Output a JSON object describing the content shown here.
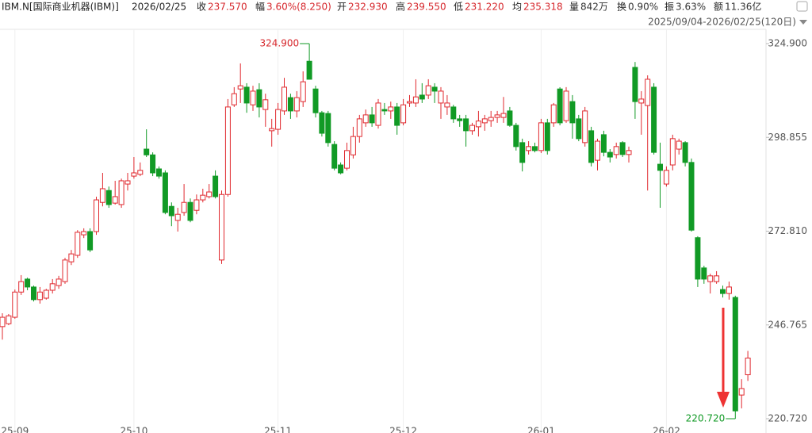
{
  "header": {
    "symbol": "IBM.N[国际商业机器(IBM)]",
    "date": "2026/02/25",
    "fields": [
      {
        "label": "收",
        "value": "237.570",
        "color": "#d6262b"
      },
      {
        "label": "幅",
        "value": "3.60%(8.250)",
        "color": "#d6262b"
      },
      {
        "label": "开",
        "value": "232.930",
        "color": "#d6262b"
      },
      {
        "label": "高",
        "value": "239.550",
        "color": "#d6262b"
      },
      {
        "label": "低",
        "value": "231.220",
        "color": "#d6262b"
      },
      {
        "label": "均",
        "value": "235.318",
        "color": "#d6262b"
      },
      {
        "label": "量",
        "value": "842万",
        "color": "#333333"
      },
      {
        "label": "换",
        "value": "0.90%",
        "color": "#333333"
      },
      {
        "label": "振",
        "value": "3.63%",
        "color": "#333333"
      },
      {
        "label": "额",
        "value": "11.36亿",
        "color": "#333333"
      }
    ],
    "range": "2025/09/04-2026/02/25(120日)"
  },
  "chart_data": {
    "type": "candlestick",
    "up_color": "#e0282e",
    "down_color": "#119a25",
    "ylim": [
      220.72,
      324.9
    ],
    "yticks": [
      {
        "value": 324.9,
        "label": "324.900"
      },
      {
        "value": 298.855,
        "label": "298.855"
      },
      {
        "value": 272.81,
        "label": "272.810"
      },
      {
        "value": 246.765,
        "label": "246.765"
      },
      {
        "value": 220.72,
        "label": "220.720"
      }
    ],
    "annotations": [
      "324.900",
      "220.720"
    ],
    "categories": [
      null,
      null,
      "25-09",
      null,
      null,
      null,
      null,
      null,
      null,
      null,
      null,
      null,
      null,
      null,
      null,
      null,
      null,
      null,
      null,
      null,
      null,
      "25-10",
      null,
      null,
      null,
      null,
      null,
      null,
      null,
      null,
      null,
      null,
      null,
      null,
      null,
      null,
      null,
      null,
      null,
      null,
      null,
      null,
      null,
      null,
      "25-11",
      null,
      null,
      null,
      null,
      null,
      null,
      null,
      null,
      null,
      null,
      null,
      null,
      null,
      null,
      null,
      null,
      null,
      null,
      null,
      "25-12",
      null,
      null,
      null,
      null,
      null,
      null,
      null,
      null,
      null,
      null,
      null,
      null,
      null,
      null,
      null,
      null,
      null,
      null,
      null,
      null,
      null,
      "26-01",
      null,
      null,
      null,
      null,
      null,
      null,
      null,
      null,
      null,
      null,
      null,
      null,
      null,
      null,
      null,
      null,
      null,
      null,
      null,
      "26-02",
      null,
      null,
      null,
      null,
      null,
      null,
      null,
      null,
      null,
      null,
      null,
      null,
      null
    ],
    "open": [
      246.3,
      247.1,
      248.9,
      255.9,
      259.5,
      257.3,
      253.8,
      254.2,
      256.4,
      257.7,
      258.8,
      264.3,
      266.1,
      271.8,
      272.7,
      272.7,
      280.8,
      284.1,
      280.6,
      280.2,
      285.9,
      288.1,
      288.6,
      295.6,
      294.0,
      290.1,
      289.0,
      279.7,
      275.8,
      278.0,
      280.8,
      278.6,
      281.5,
      282.4,
      288.1,
      264.8,
      283.0,
      307.9,
      312.3,
      312.8,
      307.9,
      312.1,
      306.6,
      300.7,
      301.1,
      306.2,
      309.9,
      306.2,
      308.8,
      320.0,
      312.3,
      305.7,
      305.5,
      296.9,
      291.2,
      290.3,
      294.0,
      299.1,
      302.9,
      305.1,
      302.2,
      306.6,
      306.2,
      307.3,
      302.9,
      308.4,
      308.4,
      310.6,
      310.6,
      312.8,
      308.4,
      307.3,
      307.3,
      304.0,
      304.0,
      300.7,
      301.8,
      302.9,
      303.5,
      304.4,
      304.4,
      306.2,
      302.2,
      297.4,
      295.2,
      296.3,
      295.2,
      302.9,
      302.9,
      312.3,
      303.5,
      308.8,
      304.0,
      297.4,
      300.7,
      292.5,
      299.6,
      294.7,
      294.1,
      297.4,
      294.1,
      318.3,
      308.4,
      307.7,
      312.8,
      291.4,
      285.9,
      291.2,
      295.6,
      297.4,
      291.9,
      271.0,
      262.6,
      258.8,
      258.8,
      256.6,
      255.5,
      254.4,
      227.3,
      232.93
    ],
    "close": [
      248.9,
      249.3,
      255.9,
      258.8,
      257.3,
      253.8,
      255.9,
      256.4,
      258.2,
      259.5,
      264.8,
      266.5,
      272.5,
      272.7,
      267.6,
      281.5,
      284.6,
      280.2,
      282.4,
      286.8,
      286.8,
      289.0,
      289.7,
      294.0,
      289.0,
      288.1,
      278.0,
      277.1,
      277.5,
      280.8,
      275.8,
      281.5,
      282.8,
      283.7,
      282.4,
      283.0,
      307.3,
      311.0,
      313.2,
      308.4,
      311.7,
      307.3,
      309.3,
      301.3,
      306.6,
      312.8,
      306.2,
      309.9,
      314.3,
      315.0,
      305.7,
      300.0,
      297.4,
      290.3,
      289.0,
      295.2,
      299.1,
      304.0,
      305.1,
      302.9,
      308.4,
      306.2,
      307.3,
      302.2,
      307.9,
      308.8,
      310.1,
      309.5,
      313.2,
      311.7,
      311.7,
      308.4,
      304.0,
      303.5,
      300.7,
      302.2,
      303.4,
      304.0,
      304.4,
      305.1,
      305.5,
      302.2,
      296.3,
      291.9,
      296.3,
      295.2,
      302.9,
      295.2,
      307.9,
      302.9,
      311.7,
      302.9,
      298.5,
      306.2,
      291.9,
      297.8,
      294.7,
      293.4,
      296.3,
      294.1,
      295.2,
      308.8,
      309.5,
      315.0,
      294.7,
      289.7,
      289.7,
      298.5,
      297.8,
      291.9,
      273.1,
      259.5,
      259.5,
      260.4,
      260.4,
      255.5,
      257.3,
      222.9,
      229.1,
      237.57
    ],
    "high": [
      250.0,
      249.8,
      256.6,
      260.6,
      259.9,
      257.7,
      257.3,
      256.8,
      259.5,
      260.4,
      265.4,
      267.6,
      273.1,
      273.6,
      273.6,
      282.4,
      289.0,
      285.2,
      286.8,
      287.4,
      289.0,
      293.4,
      291.9,
      301.1,
      294.7,
      290.8,
      289.7,
      280.8,
      279.3,
      285.9,
      281.9,
      283.0,
      284.6,
      285.9,
      289.7,
      284.1,
      309.5,
      312.8,
      319.4,
      313.9,
      313.2,
      313.9,
      311.0,
      304.0,
      308.4,
      315.4,
      311.0,
      311.7,
      317.2,
      324.9,
      313.2,
      306.2,
      306.2,
      297.8,
      291.9,
      297.4,
      301.8,
      305.1,
      306.6,
      307.3,
      309.5,
      308.4,
      308.8,
      308.4,
      309.5,
      310.6,
      315.0,
      313.9,
      315.0,
      313.9,
      312.8,
      310.6,
      307.9,
      305.1,
      305.1,
      302.9,
      306.2,
      305.1,
      306.2,
      306.2,
      310.1,
      307.3,
      302.9,
      298.5,
      297.8,
      297.4,
      304.0,
      304.0,
      308.4,
      312.8,
      312.8,
      310.6,
      305.1,
      307.3,
      301.8,
      298.5,
      300.7,
      295.6,
      297.4,
      297.8,
      296.3,
      319.8,
      311.7,
      316.1,
      313.9,
      297.4,
      290.8,
      299.6,
      298.5,
      297.8,
      293.0,
      271.4,
      263.2,
      261.0,
      261.7,
      257.7,
      258.8,
      254.9,
      231.7,
      239.55
    ],
    "low": [
      242.7,
      246.7,
      248.5,
      255.1,
      256.4,
      253.3,
      252.7,
      253.8,
      255.5,
      256.8,
      258.2,
      263.4,
      265.4,
      270.9,
      267.0,
      271.8,
      279.7,
      279.3,
      280.2,
      279.3,
      284.1,
      287.4,
      288.1,
      293.4,
      288.1,
      287.4,
      277.5,
      274.2,
      272.7,
      277.1,
      275.3,
      277.5,
      280.8,
      281.9,
      281.9,
      263.7,
      282.4,
      307.3,
      308.4,
      305.7,
      306.2,
      304.4,
      301.8,
      296.3,
      299.6,
      305.1,
      304.0,
      304.4,
      307.3,
      315.0,
      304.4,
      299.1,
      296.3,
      289.7,
      288.6,
      289.7,
      293.0,
      297.4,
      301.8,
      301.8,
      301.3,
      305.1,
      304.0,
      299.6,
      302.2,
      307.3,
      307.3,
      308.4,
      309.5,
      308.4,
      304.0,
      305.1,
      302.9,
      301.8,
      296.3,
      299.6,
      299.1,
      300.7,
      301.8,
      302.9,
      302.9,
      301.8,
      295.2,
      289.4,
      294.1,
      294.7,
      294.5,
      294.1,
      301.8,
      302.2,
      302.9,
      298.5,
      297.8,
      296.3,
      290.8,
      289.7,
      293.6,
      291.9,
      293.0,
      293.4,
      291.9,
      304.0,
      299.6,
      284.1,
      294.1,
      279.3,
      285.2,
      289.7,
      294.1,
      290.8,
      272.7,
      257.3,
      258.2,
      255.5,
      258.2,
      254.4,
      253.8,
      220.72,
      223.6,
      231.22
    ]
  }
}
